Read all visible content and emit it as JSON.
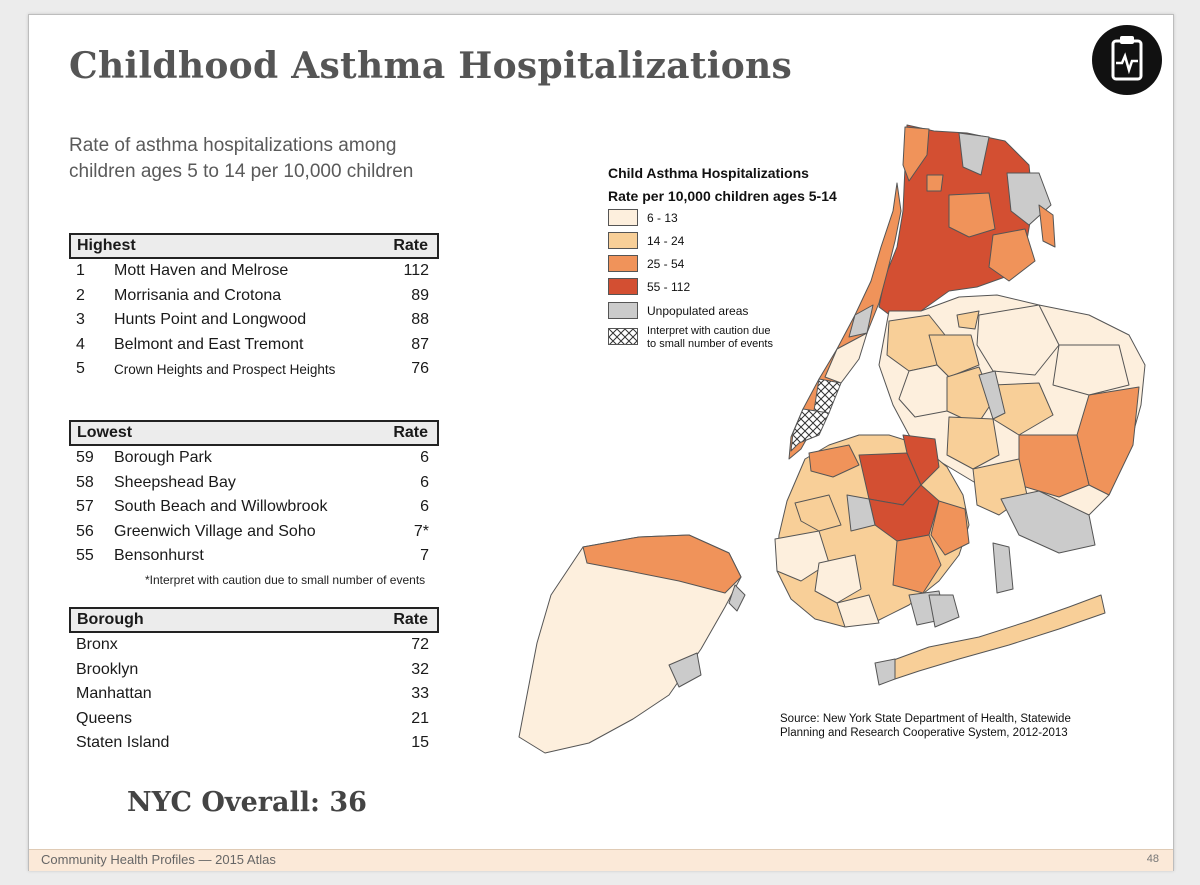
{
  "title": "Childhood Asthma Hospitalizations",
  "subtitle": "Rate of asthma hospitalizations among children ages 5 to 14 per 10,000 children",
  "highest": {
    "header": "Highest",
    "rate_header": "Rate",
    "rows": [
      {
        "num": "1",
        "name": "Mott Haven and Melrose",
        "rate": "112"
      },
      {
        "num": "2",
        "name": "Morrisania and Crotona",
        "rate": "89"
      },
      {
        "num": "3",
        "name": "Hunts Point and Longwood",
        "rate": "88"
      },
      {
        "num": "4",
        "name": "Belmont and East Tremont",
        "rate": "87"
      },
      {
        "num": "5",
        "name": "Crown Heights and Prospect Heights",
        "rate": "76"
      }
    ]
  },
  "lowest": {
    "header": "Lowest",
    "rate_header": "Rate",
    "rows": [
      {
        "num": "59",
        "name": "Borough Park",
        "rate": "6"
      },
      {
        "num": "58",
        "name": "Sheepshead Bay",
        "rate": "6"
      },
      {
        "num": "57",
        "name": "South Beach and Willowbrook",
        "rate": "6"
      },
      {
        "num": "56",
        "name": "Greenwich Village and Soho",
        "rate": "7*"
      },
      {
        "num": "55",
        "name": "Bensonhurst",
        "rate": "7"
      }
    ],
    "note": "*Interpret with caution due to small number of events"
  },
  "borough": {
    "header": "Borough",
    "rate_header": "Rate",
    "rows": [
      {
        "name": "Bronx",
        "rate": "72"
      },
      {
        "name": "Brooklyn",
        "rate": "32"
      },
      {
        "name": "Manhattan",
        "rate": "33"
      },
      {
        "name": "Queens",
        "rate": "21"
      },
      {
        "name": "Staten Island",
        "rate": "15"
      }
    ]
  },
  "overall": "NYC Overall: 36",
  "legend": {
    "title": "Child Asthma Hospitalizations",
    "subtitle": "Rate per 10,000 children ages 5-14",
    "items": [
      {
        "label": "6 - 13",
        "color": "#fdefdd"
      },
      {
        "label": "14 - 24",
        "color": "#f8cf98"
      },
      {
        "label": "25 - 54",
        "color": "#f0935a"
      },
      {
        "label": "55 - 112",
        "color": "#d34f32"
      },
      {
        "label": "Unpopulated areas",
        "color": "#cbcbcb"
      }
    ],
    "caution_line1": "Interpret with caution due",
    "caution_line2": "to small number of events"
  },
  "source": {
    "line1": "Source: New York State Department of Health, Statewide",
    "line2": "Planning and Research Cooperative System, 2012-2013"
  },
  "footer": {
    "left": "Community Health Profiles — 2015 Atlas",
    "page": "48"
  },
  "badge_icon": "clipboard-pulse-icon"
}
